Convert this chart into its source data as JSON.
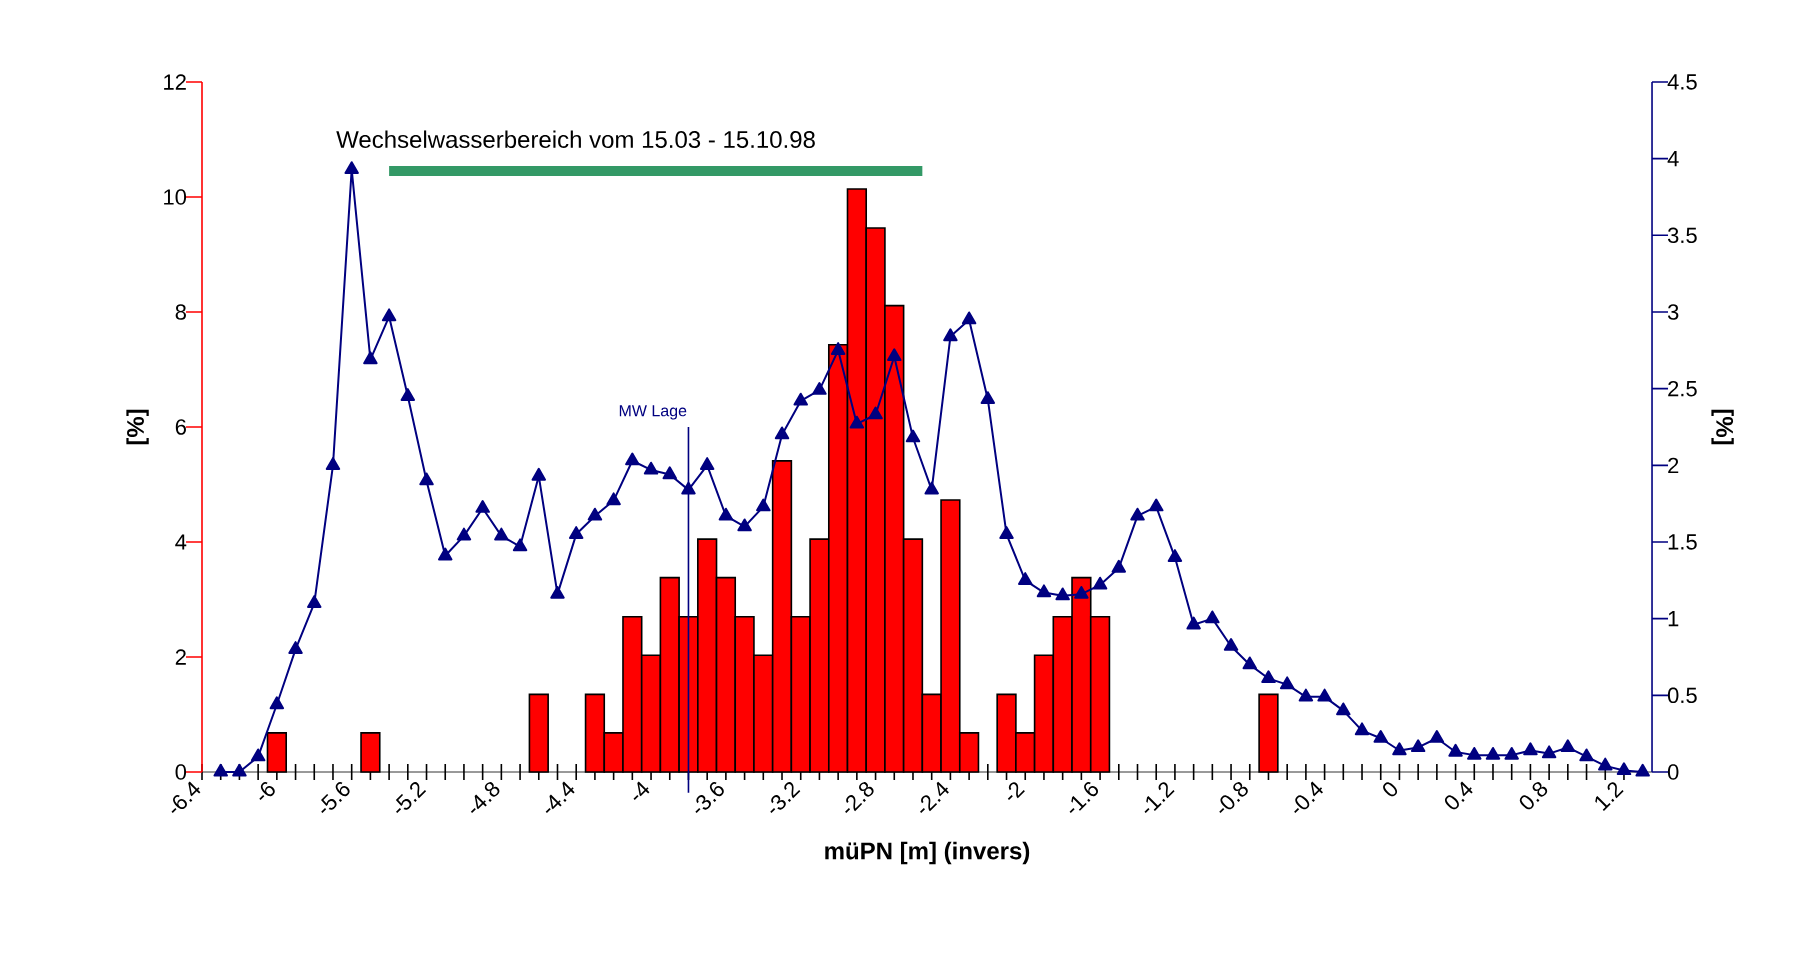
{
  "chart_data": {
    "type": "bar",
    "x": [
      -6.3,
      -6.2,
      -6.1,
      -6.0,
      -5.9,
      -5.8,
      -5.7,
      -5.6,
      -5.5,
      -5.4,
      -5.3,
      -5.2,
      -5.1,
      -5.0,
      -4.9,
      -4.8,
      -4.7,
      -4.6,
      -4.5,
      -4.4,
      -4.3,
      -4.2,
      -4.1,
      -4.0,
      -3.9,
      -3.8,
      -3.7,
      -3.6,
      -3.5,
      -3.4,
      -3.3,
      -3.2,
      -3.1,
      -3.0,
      -2.9,
      -2.8,
      -2.7,
      -2.6,
      -2.5,
      -2.4,
      -2.3,
      -2.2,
      -2.1,
      -2.0,
      -1.9,
      -1.8,
      -1.7,
      -1.6,
      -1.5,
      -1.4,
      -1.3,
      -1.2,
      -1.1,
      -1.0,
      -0.9,
      -0.8,
      -0.7,
      -0.6,
      -0.5,
      -0.4,
      -0.3,
      -0.2,
      -0.1,
      0.0,
      0.1,
      0.2,
      0.3,
      0.4,
      0.5,
      0.6,
      0.7,
      0.8,
      0.9,
      1.0,
      1.1,
      1.2,
      1.3
    ],
    "series": [
      {
        "axis": "y",
        "color": "#ff0000",
        "values": [
          null,
          null,
          null,
          0.68,
          null,
          null,
          null,
          null,
          0.68,
          null,
          null,
          null,
          null,
          null,
          null,
          null,
          null,
          1.35,
          null,
          null,
          1.35,
          0.68,
          2.7,
          2.03,
          3.38,
          2.7,
          4.05,
          3.38,
          2.7,
          2.03,
          5.41,
          2.7,
          4.05,
          7.43,
          10.14,
          9.46,
          8.11,
          4.05,
          1.35,
          4.73,
          0.68,
          null,
          1.35,
          0.68,
          2.03,
          2.7,
          3.38,
          2.7,
          null,
          null,
          null,
          null,
          null,
          null,
          null,
          null,
          1.35,
          null,
          null,
          null,
          null,
          null,
          null,
          null,
          null,
          null,
          null,
          null,
          null,
          null,
          null,
          null,
          null,
          null,
          null,
          null,
          null
        ]
      },
      {
        "type": "line",
        "axis": "y2",
        "color": "#000080",
        "marker": "triangle",
        "values": [
          0,
          0,
          0.1,
          0.44,
          0.8,
          1.1,
          2.0,
          3.93,
          2.69,
          2.97,
          2.45,
          1.9,
          1.41,
          1.54,
          1.72,
          1.54,
          1.47,
          1.93,
          1.16,
          1.55,
          1.67,
          1.77,
          2.03,
          1.97,
          1.94,
          1.84,
          2.0,
          1.67,
          1.6,
          1.73,
          2.2,
          2.42,
          2.49,
          2.75,
          2.27,
          2.33,
          2.71,
          2.18,
          1.84,
          2.84,
          2.95,
          2.43,
          1.55,
          1.25,
          1.17,
          1.15,
          1.16,
          1.22,
          1.33,
          1.67,
          1.73,
          1.4,
          0.96,
          1.0,
          0.82,
          0.7,
          0.61,
          0.57,
          0.49,
          0.49,
          0.4,
          0.27,
          0.22,
          0.14,
          0.16,
          0.22,
          0.13,
          0.11,
          0.11,
          0.11,
          0.14,
          0.12,
          0.16,
          0.1,
          0.04,
          0.01,
          0
        ]
      },
      {
        "type": "line",
        "axis": "y",
        "name": "Wechselwasserbereich vom 15.03 - 15.10.98",
        "color": "#339966",
        "marker": "none",
        "x": [
          -5.4,
          -2.55
        ],
        "values": [
          10.45,
          10.45
        ]
      }
    ],
    "xlabel": "müPN [m] (invers)",
    "ylabel": "[%]",
    "y2label": "[%]",
    "xlim": [
      -6.4,
      1.35
    ],
    "xticks": [
      -6.4,
      -6,
      -5.6,
      -5.2,
      -4.8,
      -4.4,
      -4,
      -3.6,
      -3.2,
      -2.8,
      -2.4,
      -2,
      -1.6,
      -1.2,
      -0.8,
      -0.4,
      0,
      0.4,
      0.8,
      1.2
    ],
    "ylim": [
      0,
      12
    ],
    "yticks": [
      0,
      2,
      4,
      6,
      8,
      10,
      12
    ],
    "y2lim": [
      0,
      4.5
    ],
    "y2ticks": [
      0,
      0.5,
      1,
      1.5,
      2,
      2.5,
      3,
      3.5,
      4,
      4.5
    ],
    "ref_lines": [
      {
        "axis": "x",
        "value": -3.8,
        "label": "MW Lage",
        "color": "#000080"
      }
    ],
    "grid": false
  }
}
